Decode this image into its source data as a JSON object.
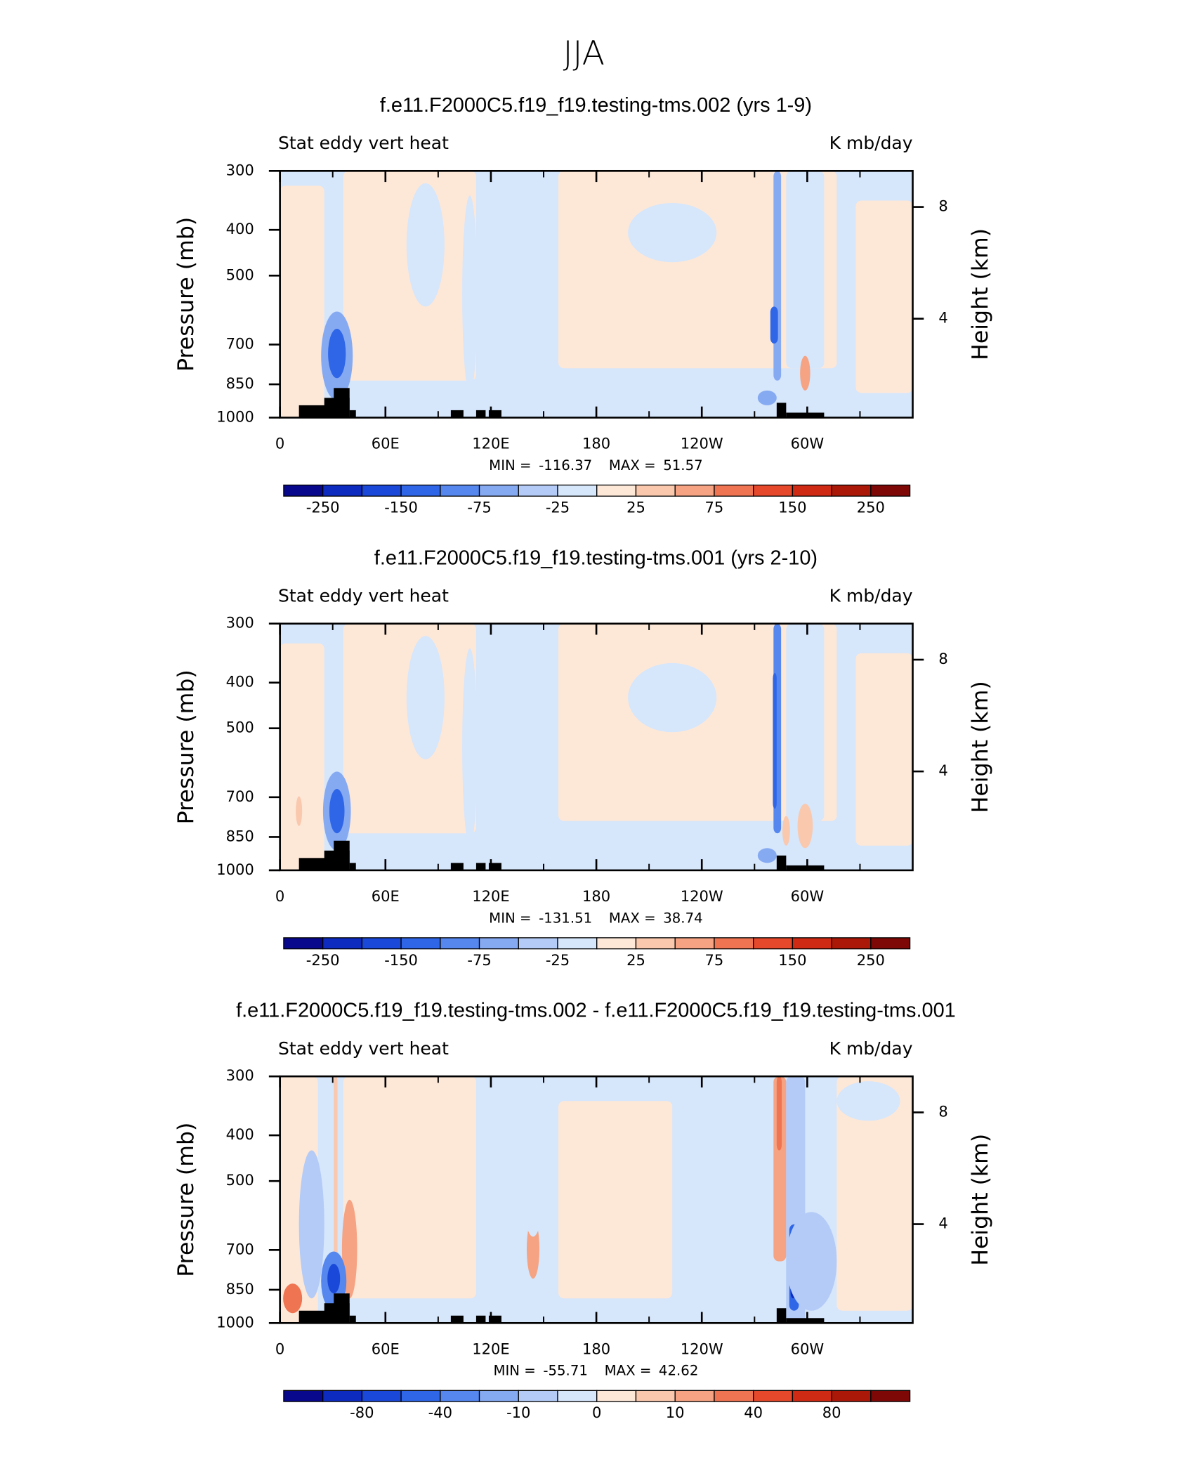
{
  "title": "JJA",
  "chart_data": [
    {
      "type": "contour",
      "title": "f.e11.F2000C5.f19_f19.testing-tms.002 (yrs 1-9)",
      "subtitle_left": "Stat eddy vert heat",
      "subtitle_right": "K mb/day",
      "ylabel": "Pressure (mb)",
      "y2label": "Height (km)",
      "xlim": [
        0,
        360
      ],
      "xticks": [
        0,
        {
          "value": 60,
          "label": "60E"
        },
        {
          "value": 120,
          "label": "120E"
        },
        180,
        {
          "value": 240,
          "label": "120W"
        },
        {
          "value": 300,
          "label": "60W"
        }
      ],
      "ylim": [
        1000,
        300
      ],
      "yticks": [
        300,
        400,
        500,
        700,
        850,
        1000
      ],
      "log_y": true,
      "y2lim": [
        0.46,
        9.29
      ],
      "y2ticks": [
        4,
        8
      ],
      "min_label": "MIN =",
      "min": -116.37,
      "max_label": "MAX =",
      "max": 51.57,
      "colorbar": {
        "colors": [
          "#08088c",
          "#0d2bbf",
          "#1a48d9",
          "#2f66e8",
          "#5587ee",
          "#86aaf2",
          "#b3cbf6",
          "#d6e6fb",
          "#fde8d8",
          "#f9c8ad",
          "#f5a382",
          "#ef7452",
          "#e5482a",
          "#cf2a14",
          "#ac1808",
          "#7e0806"
        ],
        "ticks": [
          -250,
          -150,
          -75,
          -25,
          25,
          75,
          150,
          250
        ]
      }
    },
    {
      "type": "contour",
      "title": "f.e11.F2000C5.f19_f19.testing-tms.001 (yrs 2-10)",
      "subtitle_left": "Stat eddy vert heat",
      "subtitle_right": "K mb/day",
      "ylabel": "Pressure (mb)",
      "y2label": "Height (km)",
      "xlim": [
        0,
        360
      ],
      "xticks": [
        0,
        {
          "value": 60,
          "label": "60E"
        },
        {
          "value": 120,
          "label": "120E"
        },
        180,
        {
          "value": 240,
          "label": "120W"
        },
        {
          "value": 300,
          "label": "60W"
        }
      ],
      "ylim": [
        1000,
        300
      ],
      "yticks": [
        300,
        400,
        500,
        700,
        850,
        1000
      ],
      "log_y": true,
      "y2lim": [
        0.46,
        9.29
      ],
      "y2ticks": [
        4,
        8
      ],
      "min_label": "MIN =",
      "min": -131.51,
      "max_label": "MAX =",
      "max": 38.74,
      "colorbar": {
        "colors": [
          "#08088c",
          "#0d2bbf",
          "#1a48d9",
          "#2f66e8",
          "#5587ee",
          "#86aaf2",
          "#b3cbf6",
          "#d6e6fb",
          "#fde8d8",
          "#f9c8ad",
          "#f5a382",
          "#ef7452",
          "#e5482a",
          "#cf2a14",
          "#ac1808",
          "#7e0806"
        ],
        "ticks": [
          -250,
          -150,
          -75,
          -25,
          25,
          75,
          150,
          250
        ]
      }
    },
    {
      "type": "contour",
      "title": "f.e11.F2000C5.f19_f19.testing-tms.002 - f.e11.F2000C5.f19_f19.testing-tms.001",
      "subtitle_left": "Stat eddy vert heat",
      "subtitle_right": "K mb/day",
      "ylabel": "Pressure (mb)",
      "y2label": "Height (km)",
      "xlim": [
        0,
        360
      ],
      "xticks": [
        0,
        {
          "value": 60,
          "label": "60E"
        },
        {
          "value": 120,
          "label": "120E"
        },
        180,
        {
          "value": 240,
          "label": "120W"
        },
        {
          "value": 300,
          "label": "60W"
        }
      ],
      "ylim": [
        1000,
        300
      ],
      "yticks": [
        300,
        400,
        500,
        700,
        850,
        1000
      ],
      "log_y": true,
      "y2lim": [
        0.46,
        9.29
      ],
      "y2ticks": [
        4,
        8
      ],
      "min_label": "MIN =",
      "min": -55.71,
      "max_label": "MAX =",
      "max": 42.62,
      "colorbar": {
        "colors": [
          "#08088c",
          "#0d2bbf",
          "#1a48d9",
          "#2f66e8",
          "#5587ee",
          "#86aaf2",
          "#b3cbf6",
          "#d6e6fb",
          "#fde8d8",
          "#f9c8ad",
          "#f5a382",
          "#ef7452",
          "#e5482a",
          "#cf2a14",
          "#ac1808",
          "#7e0806"
        ],
        "ticks": [
          -80,
          -40,
          -10,
          0,
          10,
          40,
          80
        ]
      }
    }
  ]
}
